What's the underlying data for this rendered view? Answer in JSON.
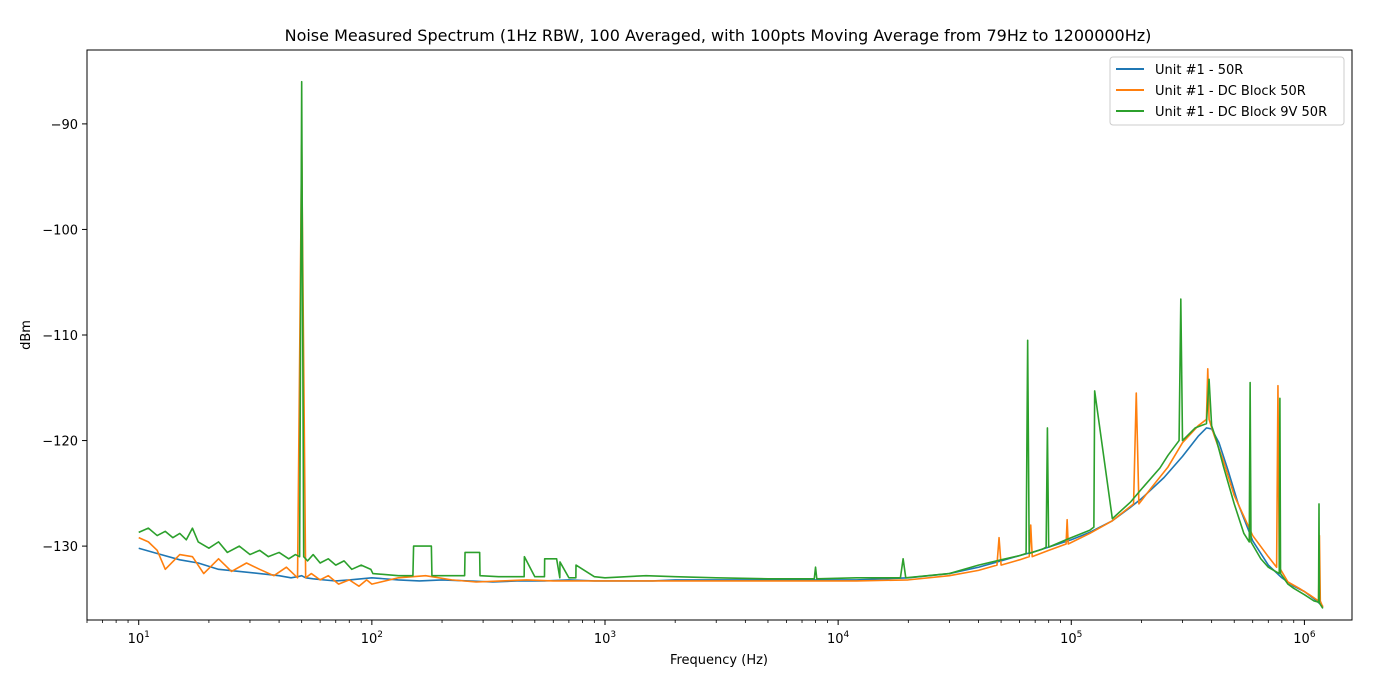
{
  "chart_data": {
    "type": "line",
    "title": "Noise Measured Spectrum (1Hz RBW, 100 Averaged, with 100pts Moving Average from 79Hz to 1200000Hz)",
    "xlabel": "Frequency (Hz)",
    "ylabel": "dBm",
    "xscale": "log",
    "xlim": [
      6,
      1600000
    ],
    "ylim": [
      -137,
      -83
    ],
    "x_ticks": [
      10,
      100,
      1000,
      10000,
      100000,
      1000000
    ],
    "x_tick_labels": [
      {
        "base": "10",
        "exp": "1"
      },
      {
        "base": "10",
        "exp": "2"
      },
      {
        "base": "10",
        "exp": "3"
      },
      {
        "base": "10",
        "exp": "4"
      },
      {
        "base": "10",
        "exp": "5"
      },
      {
        "base": "10",
        "exp": "6"
      }
    ],
    "y_ticks": [
      -90,
      -100,
      -110,
      -120,
      -130
    ],
    "y_tick_labels": [
      "−90",
      "−100",
      "−110",
      "−120",
      "−130"
    ],
    "grid": false,
    "legend_position": "top-right",
    "series": [
      {
        "name": "Unit #1 - 50R",
        "color": "#1f77b4",
        "x": [
          10,
          12,
          15,
          18,
          22,
          27,
          33,
          40,
          45,
          48,
          50,
          52,
          56,
          62,
          70,
          80,
          90,
          100,
          130,
          160,
          200,
          260,
          330,
          420,
          550,
          700,
          900,
          1200,
          1600,
          2000,
          3000,
          5000,
          8000,
          12000,
          20000,
          30000,
          40000,
          50000,
          60000,
          70000,
          80000,
          100000,
          120000,
          150000,
          180000,
          200000,
          250000,
          300000,
          350000,
          380000,
          400000,
          430000,
          470000,
          520000,
          600000,
          700000,
          800000,
          900000,
          1000000,
          1100000,
          1200000
        ],
        "y": [
          -130.2,
          -130.7,
          -131.3,
          -131.6,
          -132.2,
          -132.4,
          -132.6,
          -132.8,
          -133.0,
          -132.9,
          -132.8,
          -133.0,
          -133.1,
          -133.2,
          -133.3,
          -133.2,
          -133.1,
          -133.0,
          -133.2,
          -133.3,
          -133.2,
          -133.3,
          -133.4,
          -133.3,
          -133.3,
          -133.2,
          -133.3,
          -133.3,
          -133.3,
          -133.2,
          -133.2,
          -133.2,
          -133.2,
          -133.2,
          -133.0,
          -132.6,
          -132.0,
          -131.4,
          -130.9,
          -130.5,
          -130.1,
          -129.4,
          -128.7,
          -127.6,
          -126.3,
          -125.5,
          -123.5,
          -121.5,
          -119.6,
          -118.8,
          -118.9,
          -120.2,
          -122.8,
          -126.0,
          -129.5,
          -131.8,
          -133.0,
          -133.8,
          -134.3,
          -135.0,
          -135.7
        ]
      },
      {
        "name": "Unit #1 - DC Block 50R",
        "color": "#ff7f0e",
        "x": [
          10,
          11,
          12,
          13,
          15,
          17,
          19,
          22,
          25,
          29,
          33,
          38,
          43,
          48,
          50,
          52,
          55,
          60,
          65,
          72,
          80,
          88,
          95,
          100,
          130,
          170,
          220,
          280,
          360,
          460,
          600,
          800,
          1000,
          1500,
          2000,
          3000,
          5000,
          8000,
          12000,
          20000,
          30000,
          40000,
          48000,
          49000,
          50000,
          60000,
          66000,
          67000,
          68000,
          80000,
          95000,
          96000,
          97000,
          120000,
          150000,
          185000,
          190000,
          195000,
          220000,
          260000,
          300000,
          350000,
          380000,
          385000,
          390000,
          410000,
          450000,
          500000,
          600000,
          700000,
          760000,
          770000,
          780000,
          850000,
          950000,
          1050000,
          1150000,
          1160000,
          1170000,
          1200000
        ],
        "y": [
          -129.2,
          -129.6,
          -130.4,
          -132.2,
          -130.8,
          -131.0,
          -132.6,
          -131.2,
          -132.4,
          -131.6,
          -132.2,
          -132.8,
          -132.0,
          -133.0,
          -92.0,
          -133.0,
          -132.6,
          -133.2,
          -132.8,
          -133.6,
          -133.2,
          -133.8,
          -133.2,
          -133.6,
          -133.0,
          -132.8,
          -133.2,
          -133.4,
          -133.3,
          -133.2,
          -133.3,
          -133.3,
          -133.3,
          -133.3,
          -133.3,
          -133.3,
          -133.3,
          -133.3,
          -133.3,
          -133.2,
          -132.8,
          -132.3,
          -131.8,
          -129.2,
          -131.8,
          -131.3,
          -131.0,
          -128.0,
          -131.0,
          -130.4,
          -129.8,
          -127.5,
          -129.8,
          -128.8,
          -127.6,
          -126.0,
          -115.5,
          -126.0,
          -124.5,
          -122.5,
          -120.2,
          -118.6,
          -118.0,
          -113.2,
          -118.0,
          -119.5,
          -122.0,
          -125.2,
          -129.0,
          -131.0,
          -132.0,
          -114.8,
          -132.0,
          -133.4,
          -134.0,
          -134.6,
          -135.2,
          -129.0,
          -135.2,
          -135.8
        ]
      },
      {
        "name": "Unit #1 - DC Block 9V 50R",
        "color": "#2ca02c",
        "x": [
          10,
          11,
          12,
          13,
          14,
          15,
          16,
          17,
          18,
          20,
          22,
          24,
          27,
          30,
          33,
          36,
          40,
          44,
          47,
          49,
          50,
          51,
          53,
          56,
          60,
          65,
          70,
          76,
          82,
          90,
          99,
          101,
          130,
          150,
          151,
          180,
          181,
          240,
          250,
          251,
          290,
          291,
          350,
          400,
          450,
          451,
          500,
          550,
          551,
          620,
          640,
          641,
          700,
          750,
          751,
          900,
          1000,
          1500,
          2000,
          3000,
          5000,
          7900,
          8000,
          8100,
          12000,
          18500,
          19000,
          19500,
          30000,
          40000,
          50000,
          60000,
          64000,
          65000,
          66000,
          75000,
          78000,
          79000,
          80000,
          95000,
          120000,
          125000,
          126000,
          150000,
          180000,
          200000,
          240000,
          260000,
          290000,
          295000,
          300000,
          340000,
          380000,
          390000,
          400000,
          420000,
          450000,
          500000,
          550000,
          580000,
          585000,
          590000,
          650000,
          700000,
          780000,
          785000,
          790000,
          850000,
          900000,
          1000000,
          1100000,
          1150000,
          1155000,
          1160000,
          1200000
        ],
        "y": [
          -128.7,
          -128.3,
          -129.0,
          -128.6,
          -129.2,
          -128.8,
          -129.4,
          -128.3,
          -129.6,
          -130.2,
          -129.6,
          -130.6,
          -130.0,
          -130.8,
          -130.4,
          -131.0,
          -130.6,
          -131.2,
          -130.8,
          -131.0,
          -86.0,
          -131.0,
          -131.4,
          -130.8,
          -131.6,
          -131.2,
          -131.8,
          -131.4,
          -132.2,
          -131.8,
          -132.2,
          -132.6,
          -132.8,
          -132.8,
          -130.0,
          -130.0,
          -132.8,
          -132.8,
          -132.8,
          -130.6,
          -130.6,
          -132.8,
          -132.9,
          -132.9,
          -132.9,
          -131.0,
          -132.9,
          -132.9,
          -131.2,
          -131.2,
          -133.0,
          -131.5,
          -133.0,
          -133.0,
          -131.8,
          -132.9,
          -133.0,
          -132.8,
          -132.9,
          -133.0,
          -133.1,
          -133.1,
          -132.0,
          -133.1,
          -133.0,
          -133.0,
          -131.2,
          -133.0,
          -132.6,
          -131.8,
          -131.3,
          -130.9,
          -130.7,
          -110.5,
          -130.7,
          -130.3,
          -130.1,
          -118.8,
          -130.1,
          -129.4,
          -128.5,
          -128.2,
          -115.3,
          -127.4,
          -125.8,
          -124.6,
          -122.6,
          -121.4,
          -120.0,
          -106.6,
          -120.0,
          -118.8,
          -118.4,
          -114.2,
          -118.6,
          -120.0,
          -122.5,
          -126.0,
          -128.8,
          -129.6,
          -114.5,
          -129.6,
          -131.2,
          -132.0,
          -132.6,
          -116.0,
          -132.6,
          -133.6,
          -134.0,
          -134.6,
          -135.2,
          -135.3,
          -126.0,
          -135.4,
          -135.9
        ]
      }
    ]
  }
}
